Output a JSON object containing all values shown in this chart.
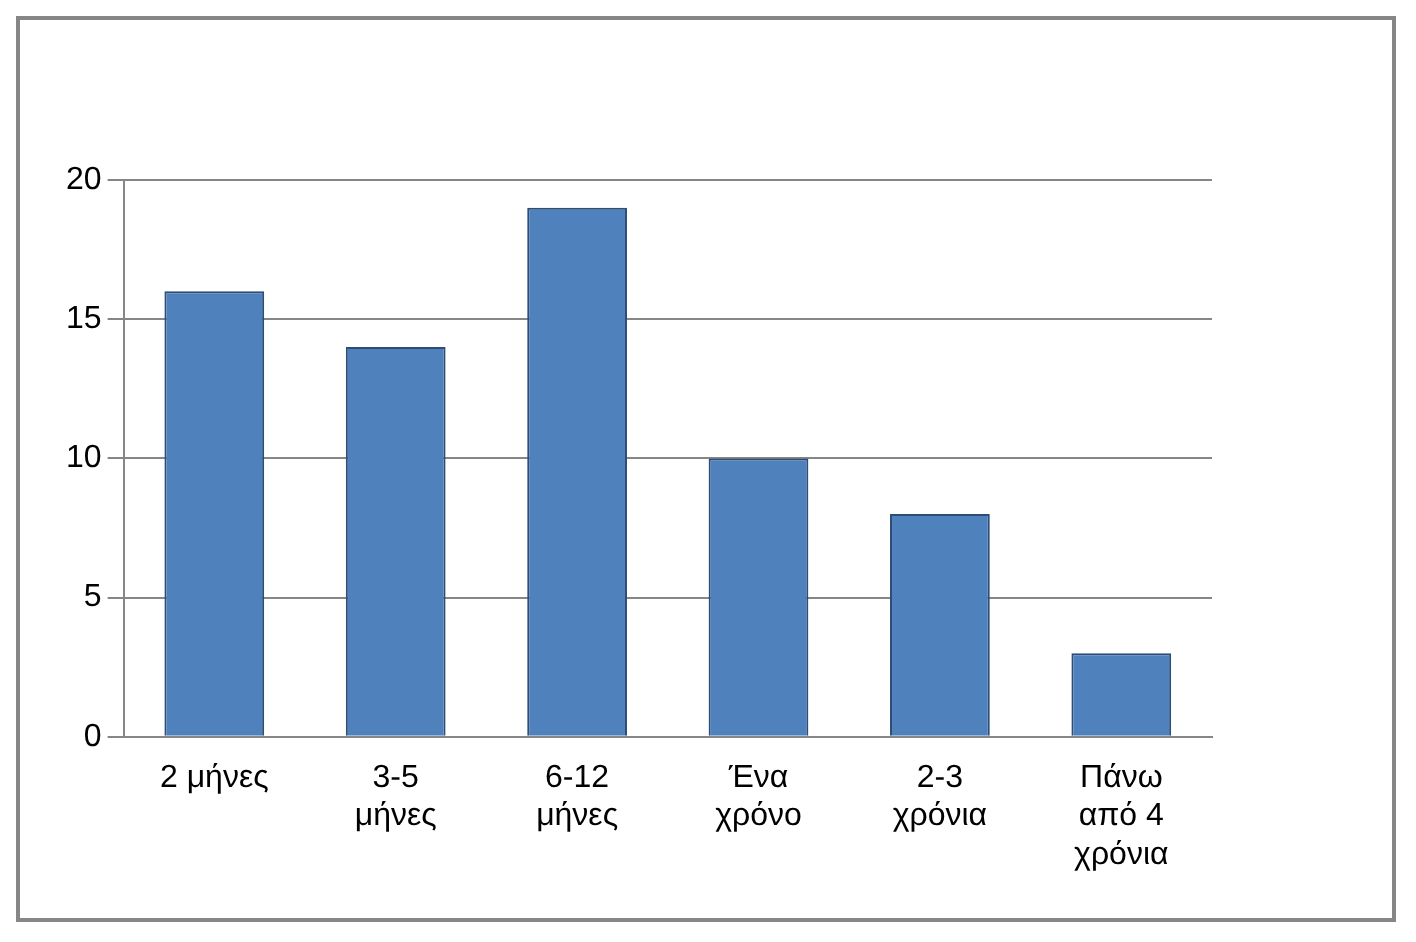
{
  "chart_data": {
    "type": "bar",
    "categories": [
      "2 μήνες",
      "3-5 μήνες",
      "6-12 μήνες",
      "Ένα χρόνο",
      "2-3 χρόνια",
      "Πάνω από 4 χρόνια"
    ],
    "values": [
      16,
      14,
      19,
      10,
      8,
      3
    ],
    "color": "#4f81bd",
    "ylim": [
      0,
      20
    ],
    "yticks": [
      0,
      5,
      10,
      15,
      20
    ],
    "grid": "y",
    "legend": false
  }
}
